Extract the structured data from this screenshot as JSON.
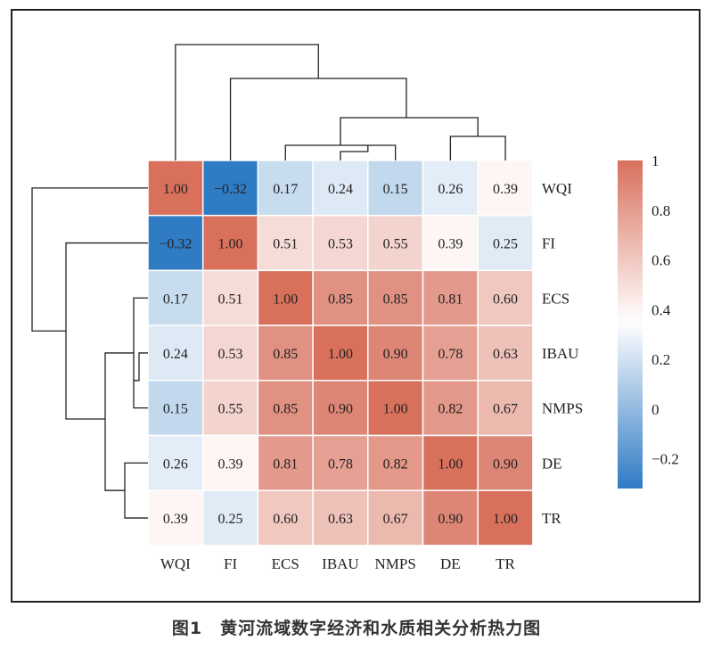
{
  "chart_data": {
    "type": "heatmap",
    "variables": [
      "WQI",
      "FI",
      "ECS",
      "IBAU",
      "NMPS",
      "DE",
      "TR"
    ],
    "labels": [
      [
        "1.00",
        "−0.32",
        "0.17",
        "0.24",
        "0.15",
        "0.26",
        "0.39"
      ],
      [
        "−0.32",
        "1.00",
        "0.51",
        "0.53",
        "0.55",
        "0.39",
        "0.25"
      ],
      [
        "0.17",
        "0.51",
        "1.00",
        "0.85",
        "0.85",
        "0.81",
        "0.60"
      ],
      [
        "0.24",
        "0.53",
        "0.85",
        "1.00",
        "0.90",
        "0.78",
        "0.63"
      ],
      [
        "0.15",
        "0.55",
        "0.85",
        "0.90",
        "1.00",
        "0.82",
        "0.67"
      ],
      [
        "0.26",
        "0.39",
        "0.81",
        "0.78",
        "0.82",
        "1.00",
        "0.90"
      ],
      [
        "0.39",
        "0.25",
        "0.60",
        "0.63",
        "0.67",
        "0.90",
        "1.00"
      ]
    ],
    "values": [
      [
        1.0,
        -0.32,
        0.17,
        0.24,
        0.15,
        0.26,
        0.39
      ],
      [
        -0.32,
        1.0,
        0.51,
        0.53,
        0.55,
        0.39,
        0.25
      ],
      [
        0.17,
        0.51,
        1.0,
        0.85,
        0.85,
        0.81,
        0.6
      ],
      [
        0.24,
        0.53,
        0.85,
        1.0,
        0.9,
        0.78,
        0.63
      ],
      [
        0.15,
        0.55,
        0.85,
        0.9,
        1.0,
        0.82,
        0.67
      ],
      [
        0.26,
        0.39,
        0.81,
        0.78,
        0.82,
        1.0,
        0.9
      ],
      [
        0.39,
        0.25,
        0.6,
        0.63,
        0.67,
        0.9,
        1.0
      ]
    ],
    "colorbar": {
      "range": [
        -0.32,
        1.0
      ],
      "midpoint": 0.35,
      "ticks": [
        1,
        0.8,
        0.6,
        0.4,
        0.2,
        0,
        -0.2
      ],
      "tick_labels": [
        "1",
        "0.8",
        "0.6",
        "0.4",
        "0.2",
        "0",
        "−0.2"
      ],
      "colors": {
        "low": "#2f7bc4",
        "mid": "#ffffff",
        "high": "#d8705c"
      }
    },
    "dendrogram": "hierarchical clustering on rows and columns",
    "legend_position": "right"
  },
  "caption": "图1　黄河流域数字经济和水质相关分析热力图"
}
